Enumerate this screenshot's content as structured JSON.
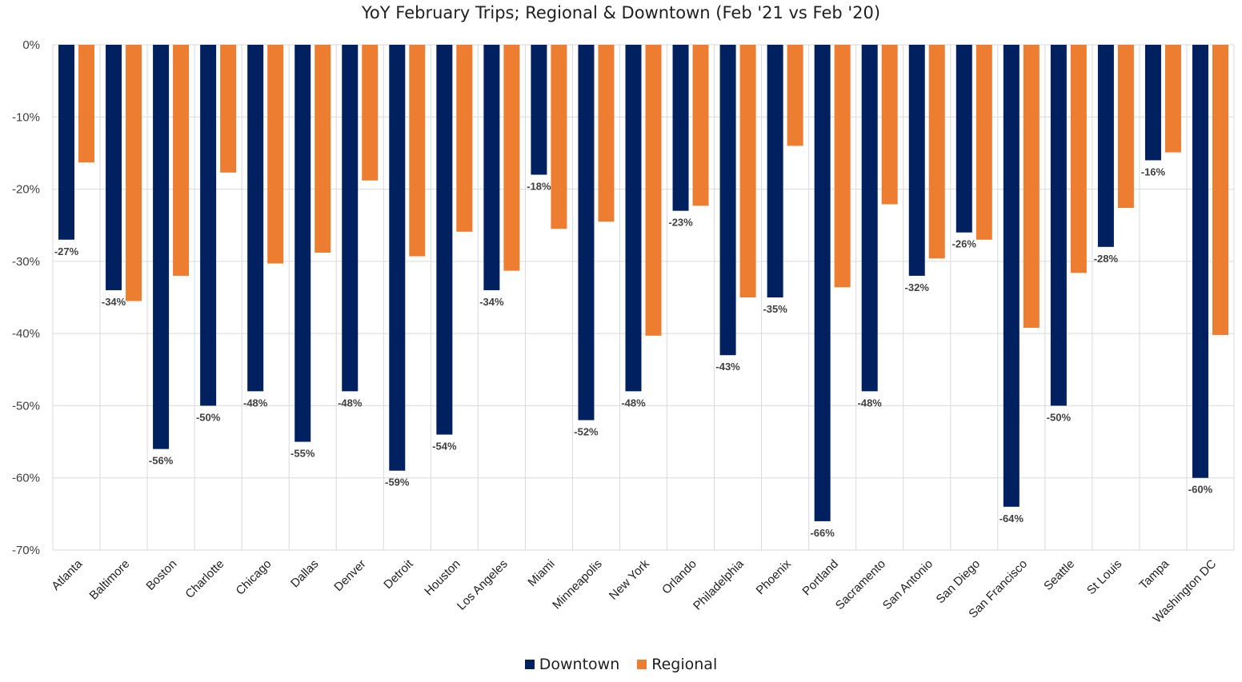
{
  "chart_data": {
    "type": "bar",
    "title": "YoY February Trips; Regional & Downtown (Feb '21 vs Feb '20)",
    "categories": [
      "Atlanta",
      "Baltimore",
      "Boston",
      "Charlotte",
      "Chicago",
      "Dallas",
      "Denver",
      "Detroit",
      "Houston",
      "Los Angeles",
      "Miami",
      "Minneapolis",
      "New York",
      "Orlando",
      "Philadelphia",
      "Phoenix",
      "Portland",
      "Sacramento",
      "San Antonio",
      "San Diego",
      "San Francisco",
      "Seattle",
      "St Louis",
      "Tampa",
      "Washington DC"
    ],
    "series": [
      {
        "name": "Downtown",
        "color": "#002060",
        "values": [
          -27,
          -34,
          -56,
          -50,
          -48,
          -55,
          -48,
          -59,
          -54,
          -34,
          -18,
          -52,
          -48,
          -23,
          -43,
          -35,
          -66,
          -48,
          -32,
          -26,
          -64,
          -50,
          -28,
          -16,
          -60
        ],
        "labels": [
          "-27%",
          "-34%",
          "-56%",
          "-50%",
          "-48%",
          "-55%",
          "-48%",
          "-59%",
          "-54%",
          "-34%",
          "-18%",
          "-52%",
          "-48%",
          "-23%",
          "-43%",
          "-35%",
          "-66%",
          "-48%",
          "-32%",
          "-26%",
          "-64%",
          "-50%",
          "-28%",
          "-16%",
          "-60%"
        ]
      },
      {
        "name": "Regional",
        "color": "#ED7D31",
        "values": [
          -16.3,
          -35.5,
          -32,
          -17.7,
          -30.3,
          -28.8,
          -18.8,
          -29.3,
          -25.9,
          -31.3,
          -25.5,
          -24.5,
          -40.3,
          -22.3,
          -35,
          -14,
          -33.6,
          -22.1,
          -29.6,
          -27,
          -39.2,
          -31.6,
          -22.6,
          -14.9,
          -40.2
        ]
      }
    ],
    "ylim": [
      -70,
      0
    ],
    "yticks": [
      0,
      -10,
      -20,
      -30,
      -40,
      -50,
      -60,
      -70
    ],
    "ytick_labels": [
      "0%",
      "-10%",
      "-20%",
      "-30%",
      "-40%",
      "-50%",
      "-60%",
      "-70%"
    ],
    "xlabel": "",
    "ylabel": "",
    "grid": true,
    "legend_position": "bottom"
  }
}
